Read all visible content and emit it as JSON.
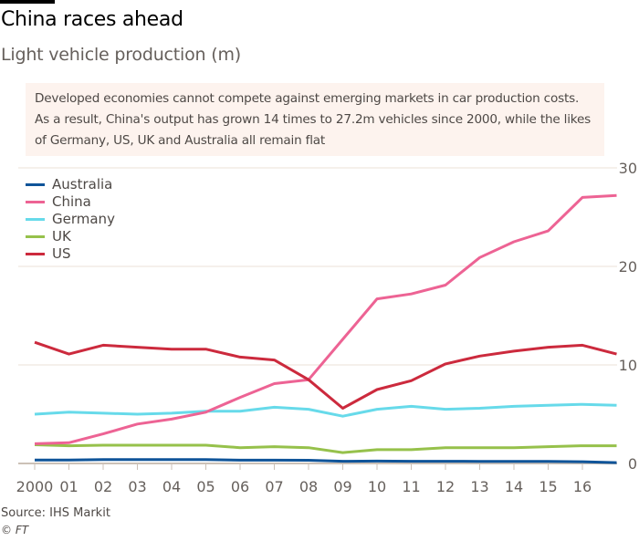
{
  "header": {
    "title": "China races ahead",
    "subtitle": "Light vehicle production (m)"
  },
  "annotation": "Developed economies cannot compete against emerging markets in car production costs. As a result, China's output has grown 14 times to 27.2m vehicles since 2000, while the likes of Germany, US, UK and Australia all remain flat",
  "footer": {
    "source": "Source: IHS Markit",
    "credit": "© FT"
  },
  "chart_data": {
    "type": "line",
    "title": "China races ahead",
    "subtitle": "Light vehicle production (m)",
    "xlabel": "",
    "ylabel": "Light vehicle production (m)",
    "x": [
      2000,
      2001,
      2002,
      2003,
      2004,
      2005,
      2006,
      2007,
      2008,
      2009,
      2010,
      2011,
      2012,
      2013,
      2014,
      2015,
      2016,
      2017
    ],
    "x_tick_labels": [
      "2000",
      "01",
      "02",
      "03",
      "04",
      "05",
      "06",
      "07",
      "08",
      "09",
      "10",
      "11",
      "12",
      "13",
      "14",
      "15",
      "16"
    ],
    "y_ticks": [
      0,
      10,
      20,
      30
    ],
    "ylim": [
      0,
      30
    ],
    "grid": true,
    "legend_position": "top-left",
    "y_axis_side": "right",
    "series": [
      {
        "name": "Australia",
        "color": "#0f5499",
        "values": [
          0.35,
          0.35,
          0.4,
          0.4,
          0.4,
          0.4,
          0.33,
          0.33,
          0.32,
          0.22,
          0.24,
          0.22,
          0.22,
          0.21,
          0.2,
          0.2,
          0.18,
          0.08
        ]
      },
      {
        "name": "China",
        "color": "#ed6394",
        "values": [
          2.0,
          2.1,
          3.0,
          4.0,
          4.5,
          5.2,
          6.7,
          8.1,
          8.5,
          12.6,
          16.7,
          17.2,
          18.1,
          20.9,
          22.5,
          23.6,
          27.0,
          27.2
        ]
      },
      {
        "name": "Germany",
        "color": "#67daea",
        "values": [
          5.0,
          5.2,
          5.1,
          5.0,
          5.1,
          5.3,
          5.3,
          5.7,
          5.5,
          4.8,
          5.5,
          5.8,
          5.5,
          5.6,
          5.8,
          5.9,
          6.0,
          5.9
        ]
      },
      {
        "name": "UK",
        "color": "#96c14b",
        "values": [
          1.9,
          1.8,
          1.85,
          1.85,
          1.85,
          1.85,
          1.6,
          1.7,
          1.6,
          1.1,
          1.4,
          1.4,
          1.6,
          1.6,
          1.6,
          1.7,
          1.8,
          1.8
        ]
      },
      {
        "name": "US",
        "color": "#cc2a3d",
        "values": [
          12.3,
          11.1,
          12.0,
          11.8,
          11.6,
          11.6,
          10.8,
          10.5,
          8.5,
          5.6,
          7.5,
          8.4,
          10.1,
          10.9,
          11.4,
          11.8,
          12.0,
          11.1
        ]
      }
    ]
  }
}
